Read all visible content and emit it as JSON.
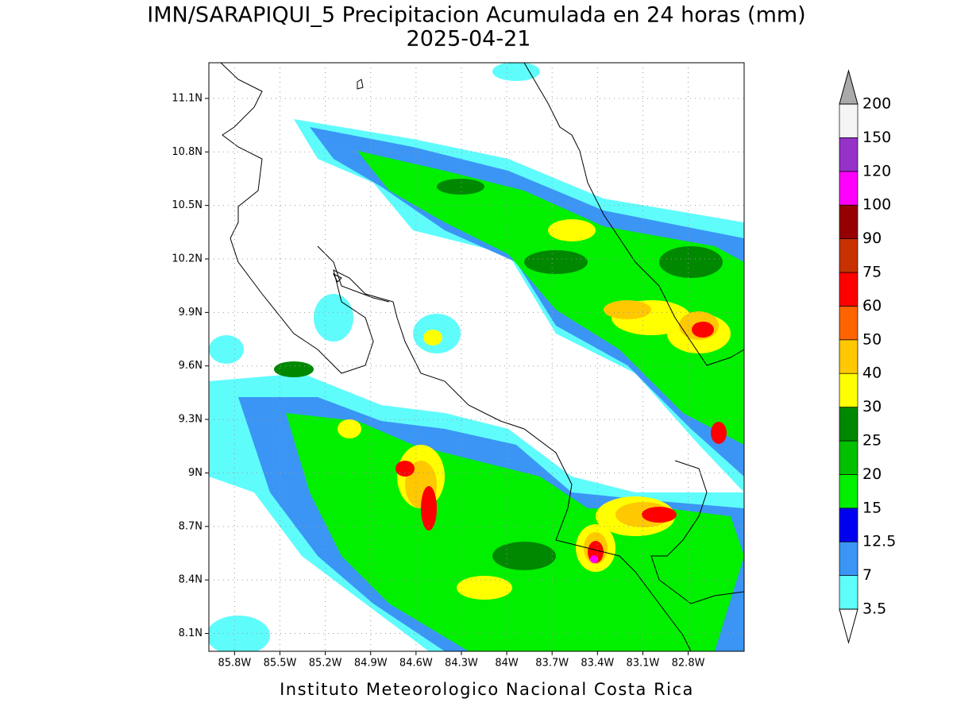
{
  "map": {
    "title": "IMN/SARAPIQUI_5 Precipitacion Acumulada en 24 horas (mm)",
    "subtitle": "2025-04-21",
    "credit": "Instituto Meteorologico Nacional Costa Rica",
    "xlim": [
      -85.97,
      -82.43
    ],
    "ylim": [
      8.0,
      11.3
    ],
    "xticks": [
      {
        "value": -85.8,
        "label": "85.8W"
      },
      {
        "value": -85.5,
        "label": "85.5W"
      },
      {
        "value": -85.2,
        "label": "85.2W"
      },
      {
        "value": -84.9,
        "label": "84.9W"
      },
      {
        "value": -84.6,
        "label": "84.6W"
      },
      {
        "value": -84.3,
        "label": "84.3W"
      },
      {
        "value": -84.0,
        "label": "84W"
      },
      {
        "value": -83.7,
        "label": "83.7W"
      },
      {
        "value": -83.4,
        "label": "83.4W"
      },
      {
        "value": -83.1,
        "label": "83.1W"
      },
      {
        "value": -82.8,
        "label": "82.8W"
      }
    ],
    "yticks": [
      {
        "value": 8.1,
        "label": "8.1N"
      },
      {
        "value": 8.4,
        "label": "8.4N"
      },
      {
        "value": 8.7,
        "label": "8.7N"
      },
      {
        "value": 9.0,
        "label": "9N"
      },
      {
        "value": 9.3,
        "label": "9.3N"
      },
      {
        "value": 9.6,
        "label": "9.6N"
      },
      {
        "value": 9.9,
        "label": "9.9N"
      },
      {
        "value": 10.2,
        "label": "10.2N"
      },
      {
        "value": 10.5,
        "label": "10.5N"
      },
      {
        "value": 10.8,
        "label": "10.8N"
      },
      {
        "value": 11.1,
        "label": "11.1N"
      }
    ],
    "grid": true,
    "colorbar": {
      "levels": [
        3.5,
        7,
        12.5,
        15,
        20,
        25,
        30,
        40,
        50,
        60,
        75,
        90,
        100,
        120,
        150,
        200
      ],
      "colors": [
        "#5ffcfc",
        "#3b95f5",
        "#0000f0",
        "#00f000",
        "#00c000",
        "#008800",
        "#ffff00",
        "#ffc800",
        "#ff6400",
        "#ff0000",
        "#c83200",
        "#960000",
        "#ff00ff",
        "#9632c8",
        "#f5f5f5"
      ],
      "under_color": "#ffffff",
      "over_color": "#aaaaaa"
    }
  }
}
